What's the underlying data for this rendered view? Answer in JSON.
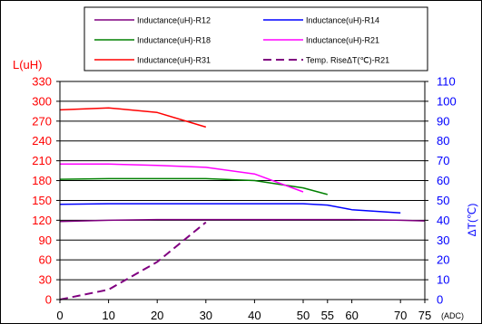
{
  "chart_data": {
    "type": "line",
    "title": "",
    "xlabel": "(ADC)",
    "ylabel_left": "L(uH)",
    "ylabel_right": "ΔT(℃)",
    "xlim": [
      0,
      75
    ],
    "ylim_left": [
      0,
      330
    ],
    "ylim_right": [
      0,
      110
    ],
    "x_ticks": [
      "0",
      "10",
      "20",
      "30",
      "40",
      "50",
      "55",
      "60",
      "70",
      "75"
    ],
    "y_left_ticks": [
      "0",
      "30",
      "60",
      "90",
      "120",
      "150",
      "180",
      "210",
      "240",
      "270",
      "300",
      "330"
    ],
    "y_right_ticks": [
      "0",
      "10",
      "20",
      "30",
      "40",
      "50",
      "60",
      "70",
      "80",
      "90",
      "100",
      "110"
    ],
    "grid": "horizontal",
    "legend_position": "top",
    "series": [
      {
        "name": "Inductance(uH)-R12",
        "axis": "left",
        "color": "#800080",
        "dash": "solid",
        "points": [
          [
            0,
            118
          ],
          [
            10,
            120
          ],
          [
            20,
            121
          ],
          [
            30,
            121
          ],
          [
            40,
            121
          ],
          [
            50,
            121
          ],
          [
            55,
            121
          ],
          [
            60,
            121
          ],
          [
            70,
            120
          ],
          [
            75,
            119
          ]
        ]
      },
      {
        "name": "Inductance(uH)-R14",
        "axis": "left",
        "color": "#0000ff",
        "dash": "solid",
        "points": [
          [
            0,
            144
          ],
          [
            10,
            145
          ],
          [
            20,
            145
          ],
          [
            30,
            145
          ],
          [
            40,
            145
          ],
          [
            50,
            145
          ],
          [
            55,
            143
          ],
          [
            60,
            136
          ],
          [
            70,
            131
          ]
        ]
      },
      {
        "name": "Inductance(uH)-R18",
        "axis": "left",
        "color": "#008000",
        "dash": "solid",
        "points": [
          [
            0,
            182
          ],
          [
            10,
            183
          ],
          [
            20,
            183
          ],
          [
            30,
            183
          ],
          [
            40,
            180
          ],
          [
            50,
            169
          ],
          [
            55,
            159
          ]
        ]
      },
      {
        "name": "Inductance(uH)-R21",
        "axis": "left",
        "color": "#ff00ff",
        "dash": "solid",
        "points": [
          [
            0,
            205
          ],
          [
            10,
            205
          ],
          [
            20,
            203
          ],
          [
            30,
            200
          ],
          [
            40,
            190
          ],
          [
            50,
            163
          ]
        ]
      },
      {
        "name": "Inductance(uH)-R31",
        "axis": "left",
        "color": "#ff0000",
        "dash": "solid",
        "points": [
          [
            0,
            287
          ],
          [
            10,
            290
          ],
          [
            20,
            283
          ],
          [
            30,
            261
          ]
        ]
      },
      {
        "name": "Temp. RiseΔT(℃)-R21",
        "axis": "right",
        "color": "#800080",
        "dash": "dashed",
        "points": [
          [
            0,
            0
          ],
          [
            10,
            5
          ],
          [
            20,
            19
          ],
          [
            30,
            39
          ]
        ]
      }
    ]
  }
}
